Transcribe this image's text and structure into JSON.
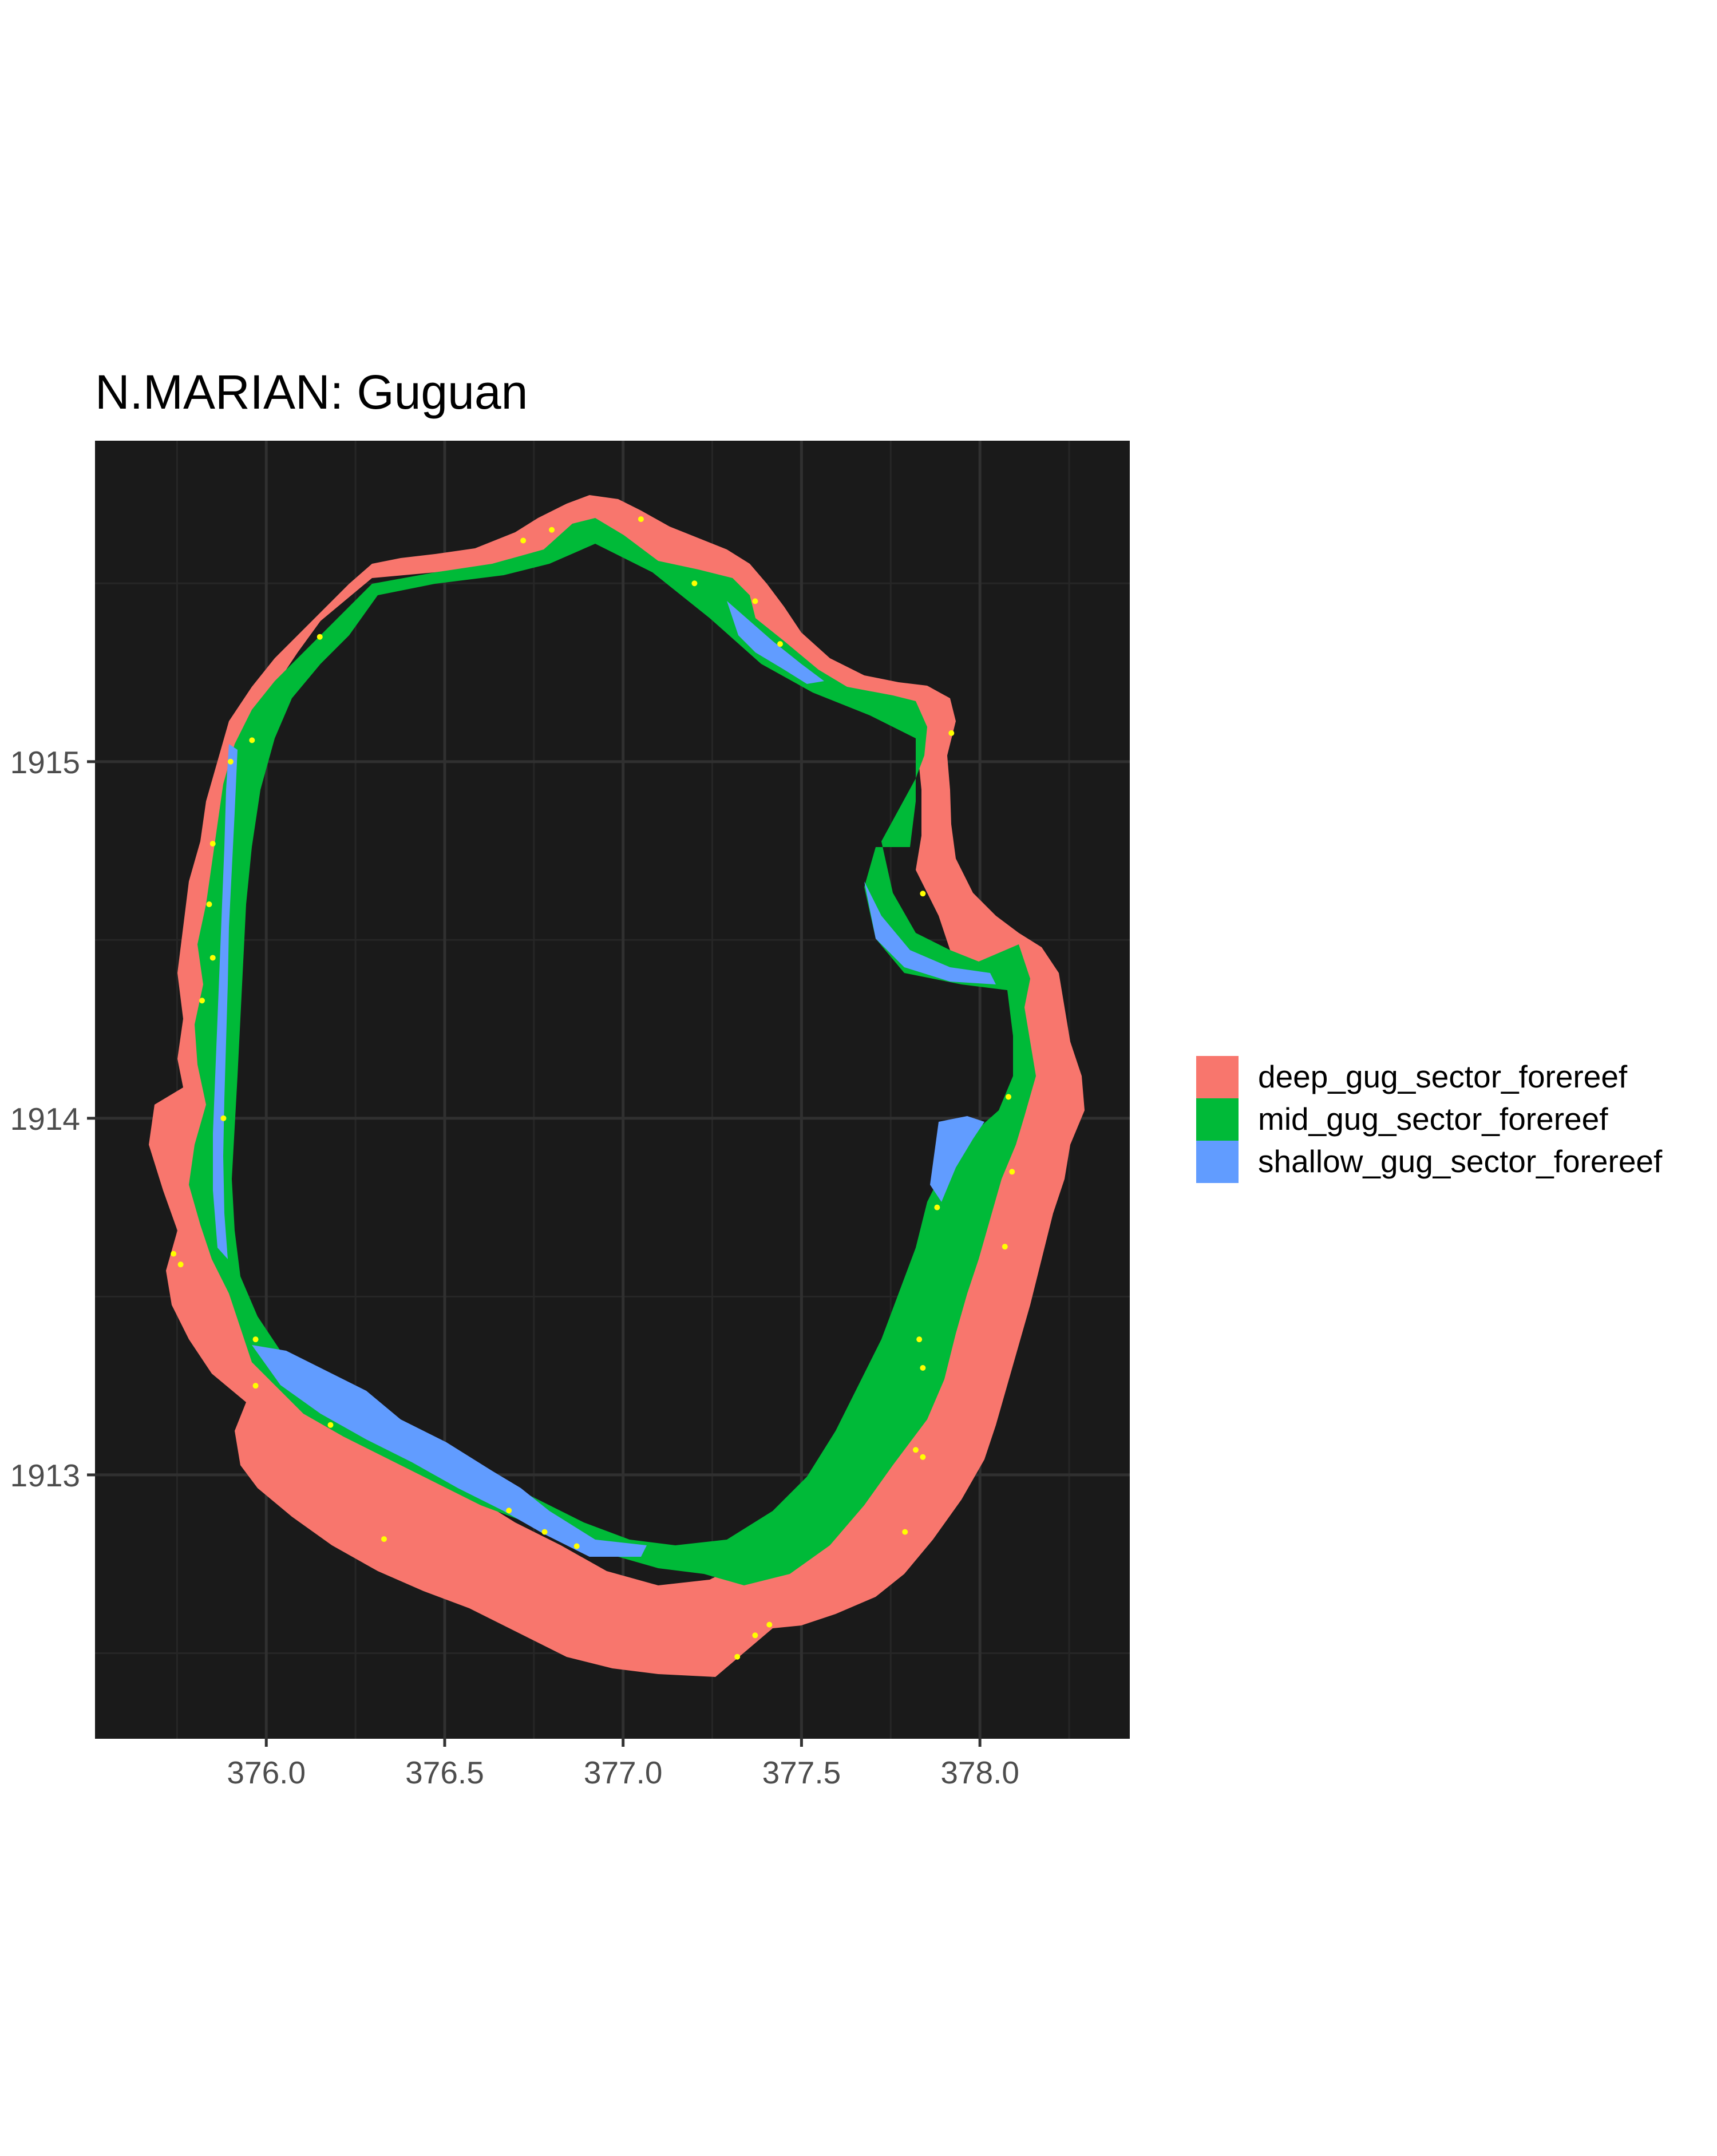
{
  "chart_data": {
    "type": "map",
    "title": "N.MARIAN: Guguan",
    "xlabel": "",
    "ylabel": "",
    "xlim": [
      375.52,
      378.42
    ],
    "ylim": [
      1912.26,
      1915.9
    ],
    "x_ticks": [
      376.0,
      376.5,
      377.0,
      377.5,
      378.0
    ],
    "x_tick_labels": [
      "376.0",
      "376.5",
      "377.0",
      "377.5",
      "378.0"
    ],
    "y_ticks": [
      1913,
      1914,
      1915
    ],
    "y_tick_labels": [
      "1913",
      "1914",
      "1915"
    ],
    "grid": true,
    "panel_background": "#1a1a1a",
    "legend_position": "right",
    "series": [
      {
        "name": "deep_gug_sector_forereef",
        "color": "#F8766D"
      },
      {
        "name": "mid_gug_sector_forereef",
        "color": "#00BA38"
      },
      {
        "name": "shallow_gug_sector_forereef",
        "color": "#619CFF"
      }
    ],
    "sites": {
      "color": "#FFFF00",
      "points": [
        [
          376.72,
          1915.62
        ],
        [
          376.8,
          1915.65
        ],
        [
          377.05,
          1915.68
        ],
        [
          377.2,
          1915.5
        ],
        [
          377.37,
          1915.45
        ],
        [
          377.44,
          1915.33
        ],
        [
          377.92,
          1915.08
        ],
        [
          376.15,
          1915.35
        ],
        [
          375.96,
          1915.06
        ],
        [
          375.9,
          1915.0
        ],
        [
          375.85,
          1914.77
        ],
        [
          375.84,
          1914.6
        ],
        [
          375.85,
          1914.45
        ],
        [
          375.82,
          1914.33
        ],
        [
          375.88,
          1914.0
        ],
        [
          375.74,
          1913.62
        ],
        [
          375.76,
          1913.59
        ],
        [
          375.97,
          1913.38
        ],
        [
          375.97,
          1913.25
        ],
        [
          376.18,
          1913.14
        ],
        [
          376.33,
          1912.82
        ],
        [
          376.68,
          1912.9
        ],
        [
          376.78,
          1912.84
        ],
        [
          376.87,
          1912.8
        ],
        [
          377.32,
          1912.49
        ],
        [
          377.37,
          1912.55
        ],
        [
          377.41,
          1912.58
        ],
        [
          377.79,
          1912.84
        ],
        [
          377.82,
          1913.07
        ],
        [
          377.84,
          1913.05
        ],
        [
          377.84,
          1913.3
        ],
        [
          377.83,
          1913.38
        ],
        [
          377.88,
          1913.75
        ],
        [
          378.07,
          1913.64
        ],
        [
          378.09,
          1913.85
        ],
        [
          378.08,
          1914.06
        ],
        [
          377.84,
          1914.63
        ]
      ]
    }
  }
}
